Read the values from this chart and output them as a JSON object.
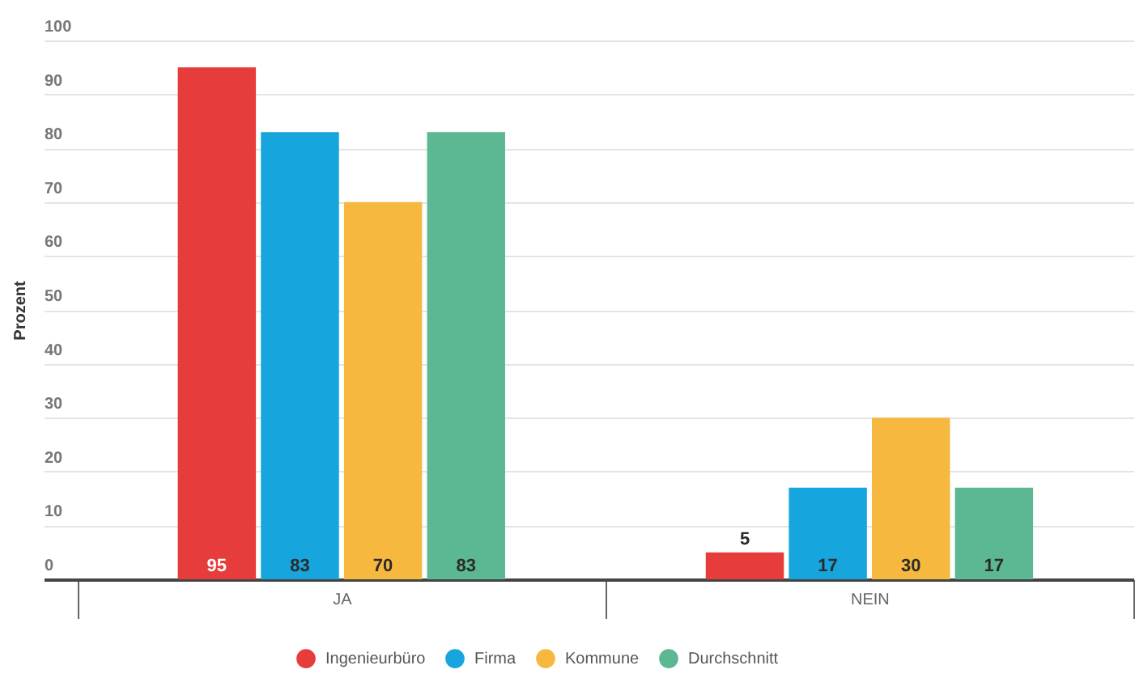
{
  "chart_data": {
    "type": "bar",
    "ylabel": "Prozent",
    "categories": [
      "JA",
      "NEIN"
    ],
    "series": [
      {
        "name": "Ingenieurbüro",
        "color": "#e63c3b",
        "values": [
          95,
          5
        ]
      },
      {
        "name": "Firma",
        "color": "#16a6dd",
        "values": [
          83,
          17
        ]
      },
      {
        "name": "Kommune",
        "color": "#f7b840",
        "values": [
          70,
          30
        ]
      },
      {
        "name": "Durchschnitt",
        "color": "#5bb893",
        "values": [
          83,
          17
        ]
      }
    ],
    "ylim": [
      0,
      100
    ],
    "yticks": [
      0,
      10,
      20,
      30,
      40,
      50,
      60,
      70,
      80,
      90,
      100
    ],
    "grid": "y",
    "legend": "bottom",
    "data_labels": true
  }
}
